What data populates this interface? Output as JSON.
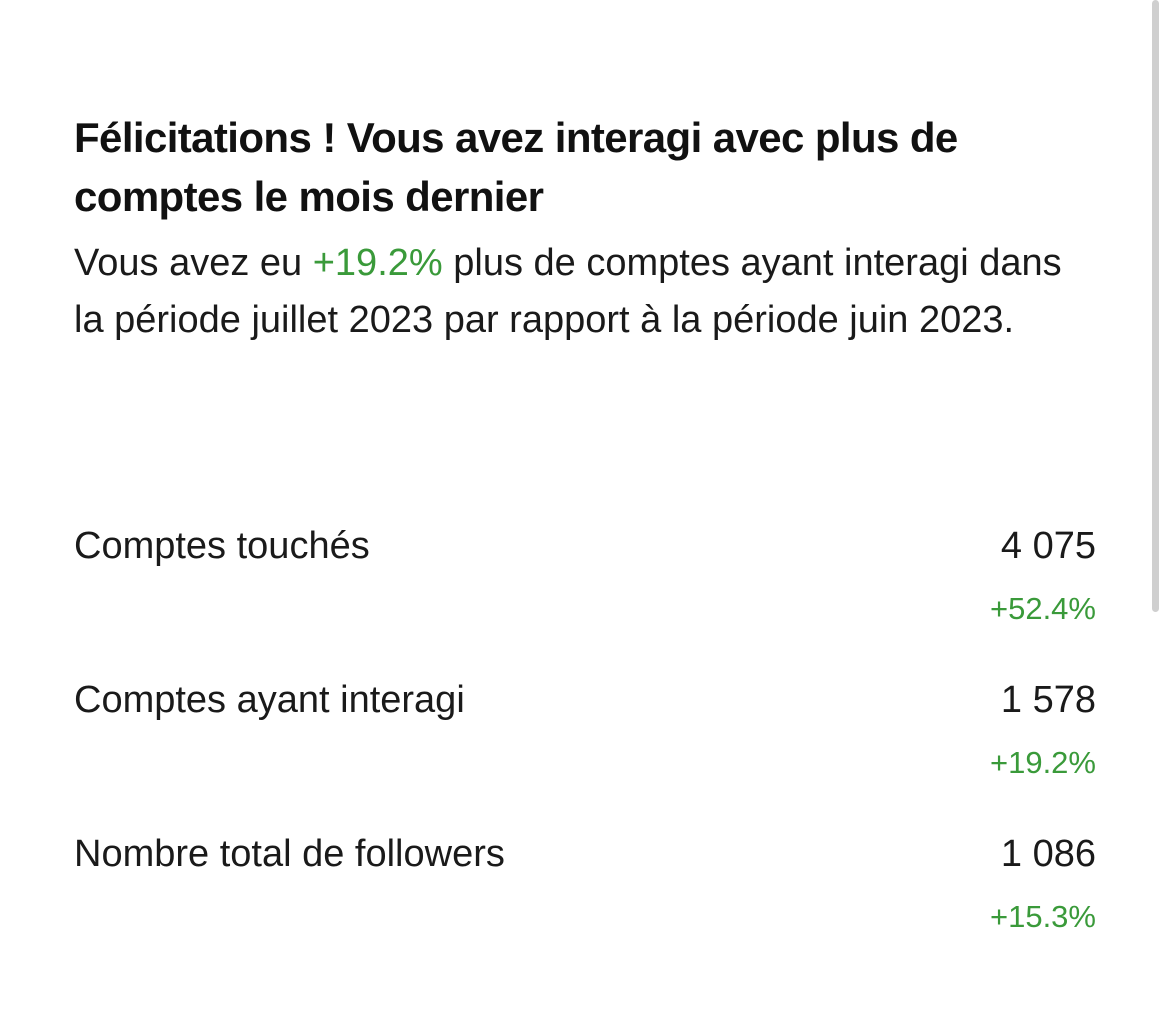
{
  "card": {
    "headline": "Félicitations ! Vous avez interagi avec plus de comptes le mois dernier",
    "summary": {
      "prefix": "Vous avez eu ",
      "highlight": "+19.2%",
      "suffix": " plus de comptes ayant interagi dans la période juillet 2023 par rapport à la période juin 2023."
    }
  },
  "metrics": [
    {
      "label": "Comptes touchés",
      "value": "4 075",
      "change": "+52.4%"
    },
    {
      "label": "Comptes ayant interagi",
      "value": "1 578",
      "change": "+19.2%"
    },
    {
      "label": "Nombre total de followers",
      "value": "1 086",
      "change": "+15.3%"
    }
  ],
  "colors": {
    "positive": "#3a9a3a",
    "text": "#1a1a1a",
    "background": "#ffffff"
  }
}
